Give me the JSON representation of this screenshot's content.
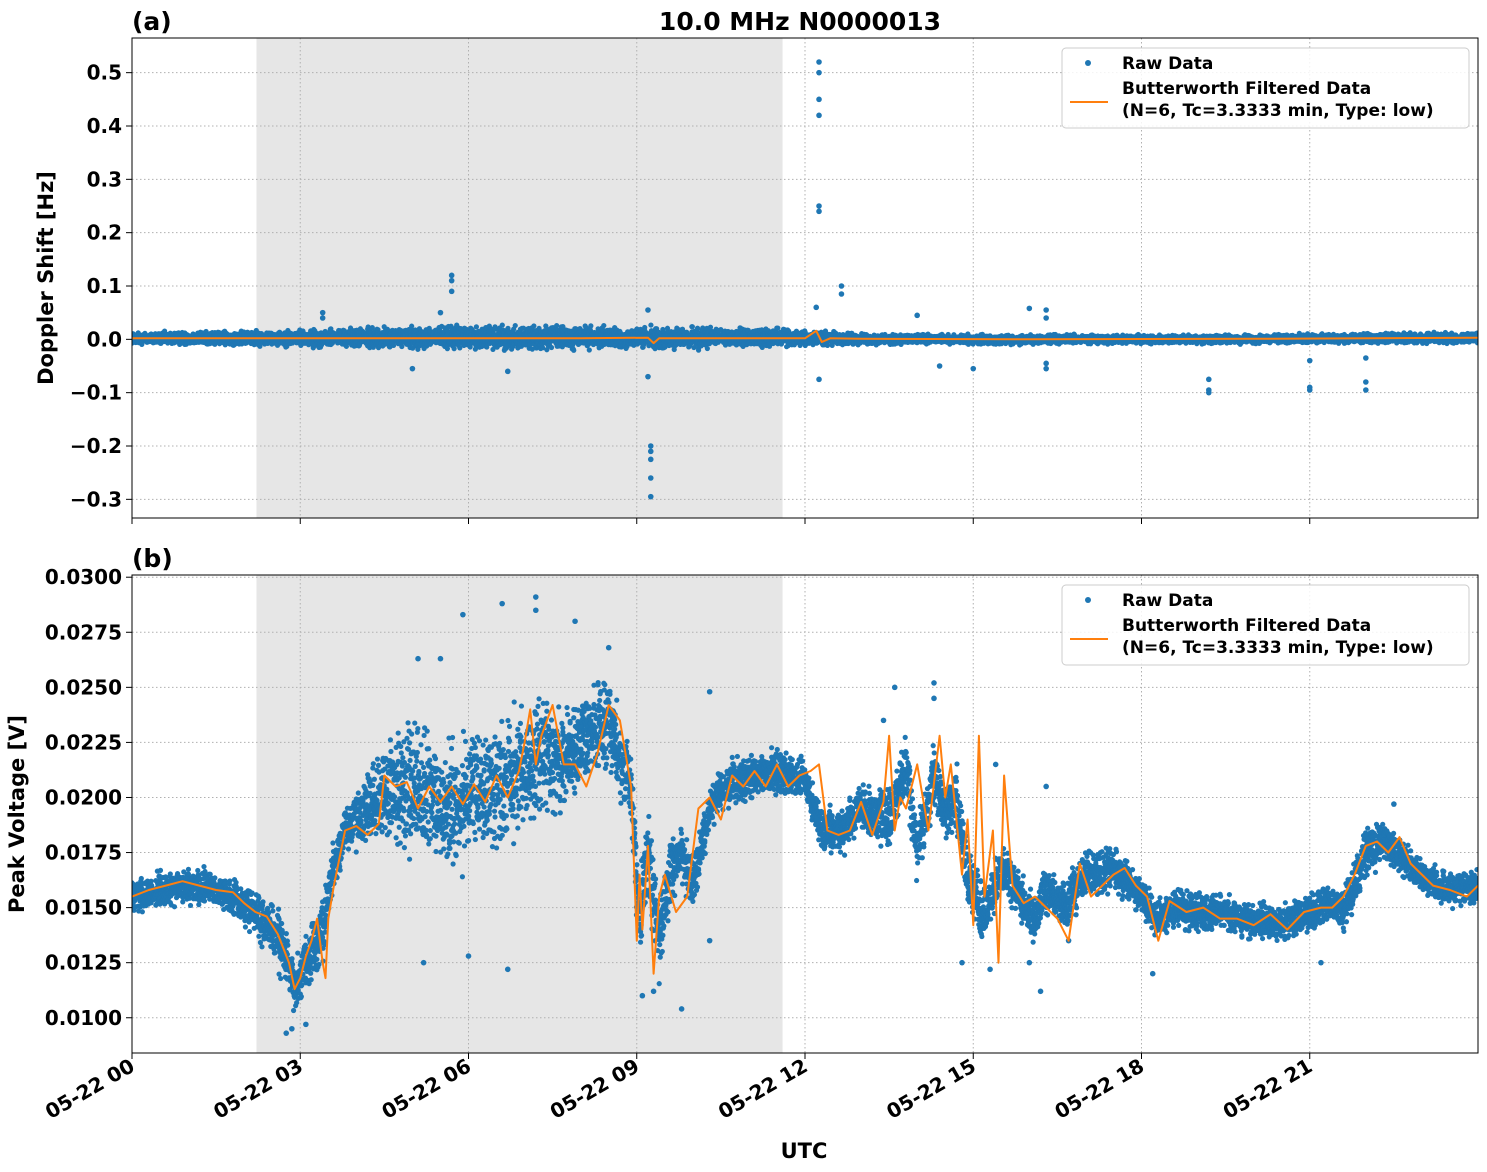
{
  "figure": {
    "title": "10.0 MHz N0000013",
    "xlabel": "UTC",
    "x_tick_labels": [
      "05-22 00",
      "05-22 03",
      "05-22 06",
      "05-22 09",
      "05-22 12",
      "05-22 15",
      "05-22 18",
      "05-22 21"
    ],
    "shaded_interval_utc_hours": [
      2.22,
      11.6
    ],
    "colors": {
      "raw": "#1f77b4",
      "filtered": "#ff7f0e",
      "shade": "#e6e6e6",
      "grid": "#b0b0b0"
    }
  },
  "chart_data": [
    {
      "type": "scatter",
      "panel_label": "(a)",
      "ylabel": "Doppler Shift [Hz]",
      "xlim_utc_hours": [
        0,
        24
      ],
      "ylim": [
        -0.335,
        0.565
      ],
      "y_ticks": [
        -0.3,
        -0.2,
        -0.1,
        0.0,
        0.1,
        0.2,
        0.3,
        0.4,
        0.5
      ],
      "y_tick_labels": [
        "−0.3",
        "−0.2",
        "−0.1",
        "0.0",
        "0.1",
        "0.2",
        "0.3",
        "0.4",
        "0.5"
      ],
      "grid": true,
      "legend": {
        "position": "top-right",
        "raw": "Raw Data",
        "filtered_line1": "Butterworth Filtered Data",
        "filtered_line2": "(N=6, Tc=3.3333 min, Type: low)"
      },
      "series": [
        {
          "name": "Raw Data",
          "style": "points",
          "band": {
            "x": [
              0,
              2,
              4,
              6,
              8,
              9,
              10,
              11.5,
              12,
              13,
              14,
              16,
              18,
              20,
              22,
              24
            ],
            "center": [
              0.002,
              0.002,
              0.003,
              0.004,
              0.003,
              0.002,
              0.003,
              0.004,
              0.002,
              0.001,
              0.0,
              0.0,
              0.0,
              0.0,
              0.002,
              0.002
            ],
            "halfwidth": [
              0.013,
              0.015,
              0.02,
              0.025,
              0.025,
              0.022,
              0.022,
              0.018,
              0.016,
              0.012,
              0.01,
              0.01,
              0.009,
              0.009,
              0.01,
              0.011
            ]
          },
          "outliers": [
            [
              3.4,
              0.05
            ],
            [
              3.4,
              0.04
            ],
            [
              5.0,
              -0.055
            ],
            [
              5.7,
              0.12
            ],
            [
              5.7,
              0.11
            ],
            [
              5.7,
              0.09
            ],
            [
              5.5,
              0.05
            ],
            [
              6.7,
              -0.06
            ],
            [
              9.25,
              -0.2
            ],
            [
              9.25,
              -0.21
            ],
            [
              9.25,
              -0.225
            ],
            [
              9.25,
              -0.26
            ],
            [
              9.25,
              -0.295
            ],
            [
              9.2,
              -0.07
            ],
            [
              9.2,
              0.055
            ],
            [
              12.25,
              0.52
            ],
            [
              12.25,
              0.5
            ],
            [
              12.25,
              0.45
            ],
            [
              12.25,
              0.42
            ],
            [
              12.25,
              0.25
            ],
            [
              12.25,
              0.24
            ],
            [
              12.2,
              0.06
            ],
            [
              12.25,
              -0.075
            ],
            [
              12.65,
              0.1
            ],
            [
              12.65,
              0.085
            ],
            [
              14.0,
              0.045
            ],
            [
              14.4,
              -0.05
            ],
            [
              15.0,
              -0.055
            ],
            [
              16.0,
              0.058
            ],
            [
              16.3,
              0.055
            ],
            [
              16.3,
              0.04
            ],
            [
              16.3,
              -0.045
            ],
            [
              16.3,
              -0.055
            ],
            [
              19.2,
              -0.075
            ],
            [
              19.2,
              -0.095
            ],
            [
              19.2,
              -0.1
            ],
            [
              21.0,
              -0.04
            ],
            [
              21.0,
              -0.09
            ],
            [
              21.0,
              -0.095
            ],
            [
              22.0,
              -0.035
            ],
            [
              22.0,
              -0.08
            ],
            [
              22.0,
              -0.095
            ]
          ]
        },
        {
          "name": "Butterworth Filtered Data",
          "style": "line",
          "x": [
            0,
            2,
            4,
            6,
            8,
            9.2,
            9.3,
            9.4,
            10,
            12,
            12.2,
            12.3,
            12.45,
            13,
            16,
            20,
            24
          ],
          "y": [
            0.002,
            0.002,
            0.002,
            0.002,
            0.002,
            0.003,
            -0.007,
            0.002,
            0.002,
            0.002,
            0.016,
            -0.005,
            0.002,
            0.001,
            0.0,
            0.001,
            0.003
          ]
        }
      ]
    },
    {
      "type": "scatter",
      "panel_label": "(b)",
      "ylabel": "Peak Voltage [V]",
      "xlim_utc_hours": [
        0,
        24
      ],
      "ylim": [
        0.0084,
        0.0301
      ],
      "y_ticks": [
        0.01,
        0.0125,
        0.015,
        0.0175,
        0.02,
        0.0225,
        0.025,
        0.0275,
        0.03
      ],
      "y_tick_labels": [
        "0.0100",
        "0.0125",
        "0.0150",
        "0.0175",
        "0.0200",
        "0.0225",
        "0.0250",
        "0.0275",
        "0.0300"
      ],
      "grid": true,
      "legend": {
        "position": "top-right",
        "raw": "Raw Data",
        "filtered_line1": "Butterworth Filtered Data",
        "filtered_line2": "(N=6, Tc=3.3333 min, Type: low)"
      },
      "series": [
        {
          "name": "Raw Data",
          "style": "points",
          "band": {
            "x": [
              0,
              0.5,
              1,
              1.5,
              2,
              2.3,
              2.6,
              2.9,
              3.1,
              3.4,
              3.6,
              3.8,
              4.0,
              4.4,
              4.7,
              5.0,
              5.5,
              6.0,
              6.5,
              7.0,
              7.3,
              7.7,
              8.0,
              8.5,
              8.9,
              9.05,
              9.2,
              9.4,
              9.6,
              9.8,
              10.0,
              10.3,
              10.5,
              10.8,
              11.0,
              11.3,
              11.7,
              12.0,
              12.3,
              12.7,
              13.0,
              13.5,
              13.8,
              14.0,
              14.3,
              14.5,
              14.7,
              14.9,
              15.2,
              15.5,
              15.8,
              16.1,
              16.3,
              16.6,
              17.0,
              17.5,
              18.0,
              18.3,
              18.6,
              19.0,
              19.5,
              20.0,
              20.5,
              21.0,
              21.3,
              21.6,
              22.0,
              22.3,
              22.6,
              23.0,
              23.5,
              24.0
            ],
            "center": [
              0.0155,
              0.0158,
              0.016,
              0.0158,
              0.0152,
              0.0145,
              0.0138,
              0.0115,
              0.0125,
              0.014,
              0.017,
              0.0185,
              0.019,
              0.02,
              0.0205,
              0.0205,
              0.0195,
              0.02,
              0.0205,
              0.021,
              0.022,
              0.0215,
              0.0225,
              0.0235,
              0.0205,
              0.0145,
              0.0175,
              0.0135,
              0.0165,
              0.0175,
              0.016,
              0.0195,
              0.0205,
              0.0207,
              0.021,
              0.0212,
              0.021,
              0.0208,
              0.0185,
              0.0185,
              0.0195,
              0.019,
              0.0215,
              0.0175,
              0.021,
              0.0195,
              0.02,
              0.0165,
              0.0145,
              0.017,
              0.0155,
              0.0145,
              0.016,
              0.015,
              0.0165,
              0.0168,
              0.0155,
              0.0145,
              0.015,
              0.0148,
              0.0148,
              0.0143,
              0.0143,
              0.0148,
              0.0152,
              0.0148,
              0.0175,
              0.018,
              0.0175,
              0.0163,
              0.0158,
              0.016
            ],
            "halfwidth": [
              0.0008,
              0.0009,
              0.0009,
              0.0009,
              0.001,
              0.0012,
              0.0015,
              0.0015,
              0.0015,
              0.0018,
              0.0012,
              0.0012,
              0.0015,
              0.0025,
              0.0032,
              0.0032,
              0.0032,
              0.0032,
              0.0032,
              0.0032,
              0.003,
              0.0028,
              0.0025,
              0.0022,
              0.002,
              0.002,
              0.0025,
              0.002,
              0.0018,
              0.0015,
              0.0015,
              0.0012,
              0.0012,
              0.0012,
              0.0011,
              0.0011,
              0.0011,
              0.001,
              0.0012,
              0.0012,
              0.0012,
              0.0015,
              0.0015,
              0.0015,
              0.0015,
              0.0015,
              0.0015,
              0.0015,
              0.0015,
              0.0012,
              0.0012,
              0.0012,
              0.0012,
              0.0012,
              0.0012,
              0.0011,
              0.001,
              0.001,
              0.001,
              0.001,
              0.0009,
              0.0009,
              0.0009,
              0.0009,
              0.0009,
              0.001,
              0.0012,
              0.0012,
              0.001,
              0.0009,
              0.0009,
              0.0009
            ]
          },
          "outliers": [
            [
              2.75,
              0.0093
            ],
            [
              2.85,
              0.0095
            ],
            [
              3.1,
              0.0097
            ],
            [
              5.1,
              0.0263
            ],
            [
              5.5,
              0.0263
            ],
            [
              5.9,
              0.0283
            ],
            [
              6.6,
              0.0288
            ],
            [
              7.2,
              0.0291
            ],
            [
              7.2,
              0.0285
            ],
            [
              7.9,
              0.028
            ],
            [
              8.5,
              0.0268
            ],
            [
              5.2,
              0.0125
            ],
            [
              6.0,
              0.0128
            ],
            [
              6.7,
              0.0122
            ],
            [
              9.1,
              0.011
            ],
            [
              9.3,
              0.0112
            ],
            [
              9.8,
              0.0104
            ],
            [
              10.3,
              0.0248
            ],
            [
              10.3,
              0.0135
            ],
            [
              13.6,
              0.025
            ],
            [
              14.3,
              0.0252
            ],
            [
              14.3,
              0.0245
            ],
            [
              14.8,
              0.0125
            ],
            [
              15.3,
              0.0122
            ],
            [
              16.2,
              0.0112
            ],
            [
              16.0,
              0.0125
            ],
            [
              16.7,
              0.0135
            ],
            [
              18.2,
              0.012
            ],
            [
              21.2,
              0.0125
            ],
            [
              22.5,
              0.0197
            ],
            [
              13.4,
              0.0235
            ],
            [
              15.4,
              0.0215
            ],
            [
              16.3,
              0.0205
            ]
          ]
        },
        {
          "name": "Butterworth Filtered Data",
          "style": "line",
          "x": [
            0,
            0.3,
            0.6,
            0.9,
            1.2,
            1.5,
            1.8,
            2.0,
            2.2,
            2.4,
            2.6,
            2.8,
            2.9,
            3.0,
            3.1,
            3.2,
            3.3,
            3.4,
            3.45,
            3.5,
            3.6,
            3.8,
            4.0,
            4.2,
            4.4,
            4.5,
            4.7,
            4.9,
            5.1,
            5.3,
            5.5,
            5.7,
            5.9,
            6.1,
            6.3,
            6.5,
            6.7,
            6.9,
            7.0,
            7.1,
            7.2,
            7.3,
            7.5,
            7.7,
            7.9,
            8.1,
            8.3,
            8.5,
            8.7,
            8.9,
            9.0,
            9.05,
            9.1,
            9.2,
            9.3,
            9.4,
            9.5,
            9.7,
            9.9,
            10.1,
            10.3,
            10.5,
            10.7,
            10.9,
            11.1,
            11.3,
            11.5,
            11.7,
            11.9,
            12.1,
            12.25,
            12.4,
            12.6,
            12.8,
            13.0,
            13.2,
            13.4,
            13.5,
            13.6,
            13.7,
            13.8,
            14.0,
            14.2,
            14.4,
            14.5,
            14.6,
            14.8,
            14.9,
            15.0,
            15.1,
            15.2,
            15.35,
            15.45,
            15.55,
            15.7,
            15.9,
            16.1,
            16.3,
            16.5,
            16.7,
            16.9,
            17.1,
            17.3,
            17.5,
            17.7,
            17.9,
            18.1,
            18.3,
            18.5,
            18.8,
            19.1,
            19.4,
            19.7,
            20.0,
            20.3,
            20.6,
            20.9,
            21.2,
            21.4,
            21.6,
            21.8,
            22.0,
            22.2,
            22.4,
            22.6,
            22.8,
            23.0,
            23.2,
            23.5,
            23.8,
            24.0
          ],
          "y": [
            0.0155,
            0.0158,
            0.016,
            0.0162,
            0.016,
            0.0158,
            0.0157,
            0.0152,
            0.0148,
            0.0146,
            0.0138,
            0.0125,
            0.0113,
            0.0118,
            0.0128,
            0.0135,
            0.0145,
            0.0125,
            0.0118,
            0.0145,
            0.016,
            0.0185,
            0.0187,
            0.0183,
            0.0188,
            0.021,
            0.0205,
            0.0207,
            0.0195,
            0.0205,
            0.0198,
            0.0205,
            0.0197,
            0.0206,
            0.0198,
            0.021,
            0.02,
            0.0212,
            0.0225,
            0.024,
            0.0215,
            0.0228,
            0.0242,
            0.0215,
            0.0215,
            0.0205,
            0.022,
            0.0242,
            0.0235,
            0.0205,
            0.0135,
            0.0165,
            0.014,
            0.0178,
            0.012,
            0.0155,
            0.0165,
            0.0148,
            0.0155,
            0.0195,
            0.02,
            0.019,
            0.021,
            0.0205,
            0.0212,
            0.0205,
            0.0215,
            0.0205,
            0.021,
            0.0212,
            0.0215,
            0.0185,
            0.0183,
            0.0185,
            0.0198,
            0.0183,
            0.0198,
            0.0228,
            0.0185,
            0.02,
            0.0195,
            0.0215,
            0.0185,
            0.0228,
            0.02,
            0.0215,
            0.0165,
            0.019,
            0.0142,
            0.0228,
            0.0155,
            0.0185,
            0.0125,
            0.021,
            0.016,
            0.0152,
            0.0155,
            0.015,
            0.0145,
            0.0135,
            0.017,
            0.0155,
            0.016,
            0.0165,
            0.0168,
            0.016,
            0.0155,
            0.0135,
            0.0153,
            0.0148,
            0.015,
            0.0145,
            0.0145,
            0.0142,
            0.0147,
            0.014,
            0.0148,
            0.015,
            0.015,
            0.0155,
            0.0165,
            0.0178,
            0.018,
            0.0175,
            0.0182,
            0.017,
            0.0165,
            0.016,
            0.0158,
            0.0155,
            0.016
          ]
        }
      ]
    }
  ]
}
